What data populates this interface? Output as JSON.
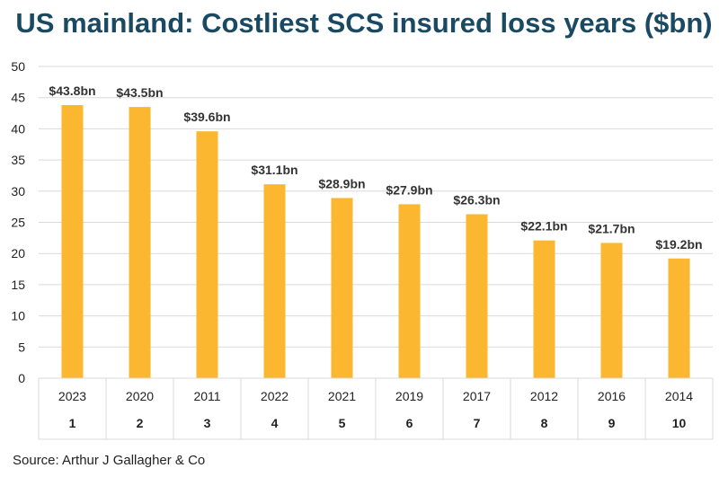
{
  "chart_data": {
    "type": "bar",
    "title": "US mainland: Costliest SCS insured loss years ($bn)",
    "categories": [
      "2023",
      "2020",
      "2011",
      "2022",
      "2021",
      "2019",
      "2017",
      "2012",
      "2016",
      "2014"
    ],
    "ranks": [
      "1",
      "2",
      "3",
      "4",
      "5",
      "6",
      "7",
      "8",
      "9",
      "10"
    ],
    "values": [
      43.8,
      43.5,
      39.6,
      31.1,
      28.9,
      27.9,
      26.3,
      22.1,
      21.7,
      19.2
    ],
    "data_labels": [
      "$43.8bn",
      "$43.5bn",
      "$39.6bn",
      "$31.1bn",
      "$28.9bn",
      "$27.9bn",
      "$26.3bn",
      "$22.1bn",
      "$21.7bn",
      "$19.2bn"
    ],
    "ylim": [
      0,
      50
    ],
    "yticks": [
      0,
      5,
      10,
      15,
      20,
      25,
      30,
      35,
      40,
      45,
      50
    ],
    "grid": true,
    "legend": "none",
    "colors": {
      "bar": "#fbb72f",
      "title": "#1a4a63",
      "grid": "#d9d9d9",
      "text": "#222222"
    }
  },
  "source": "Source: Arthur J Gallagher & Co"
}
